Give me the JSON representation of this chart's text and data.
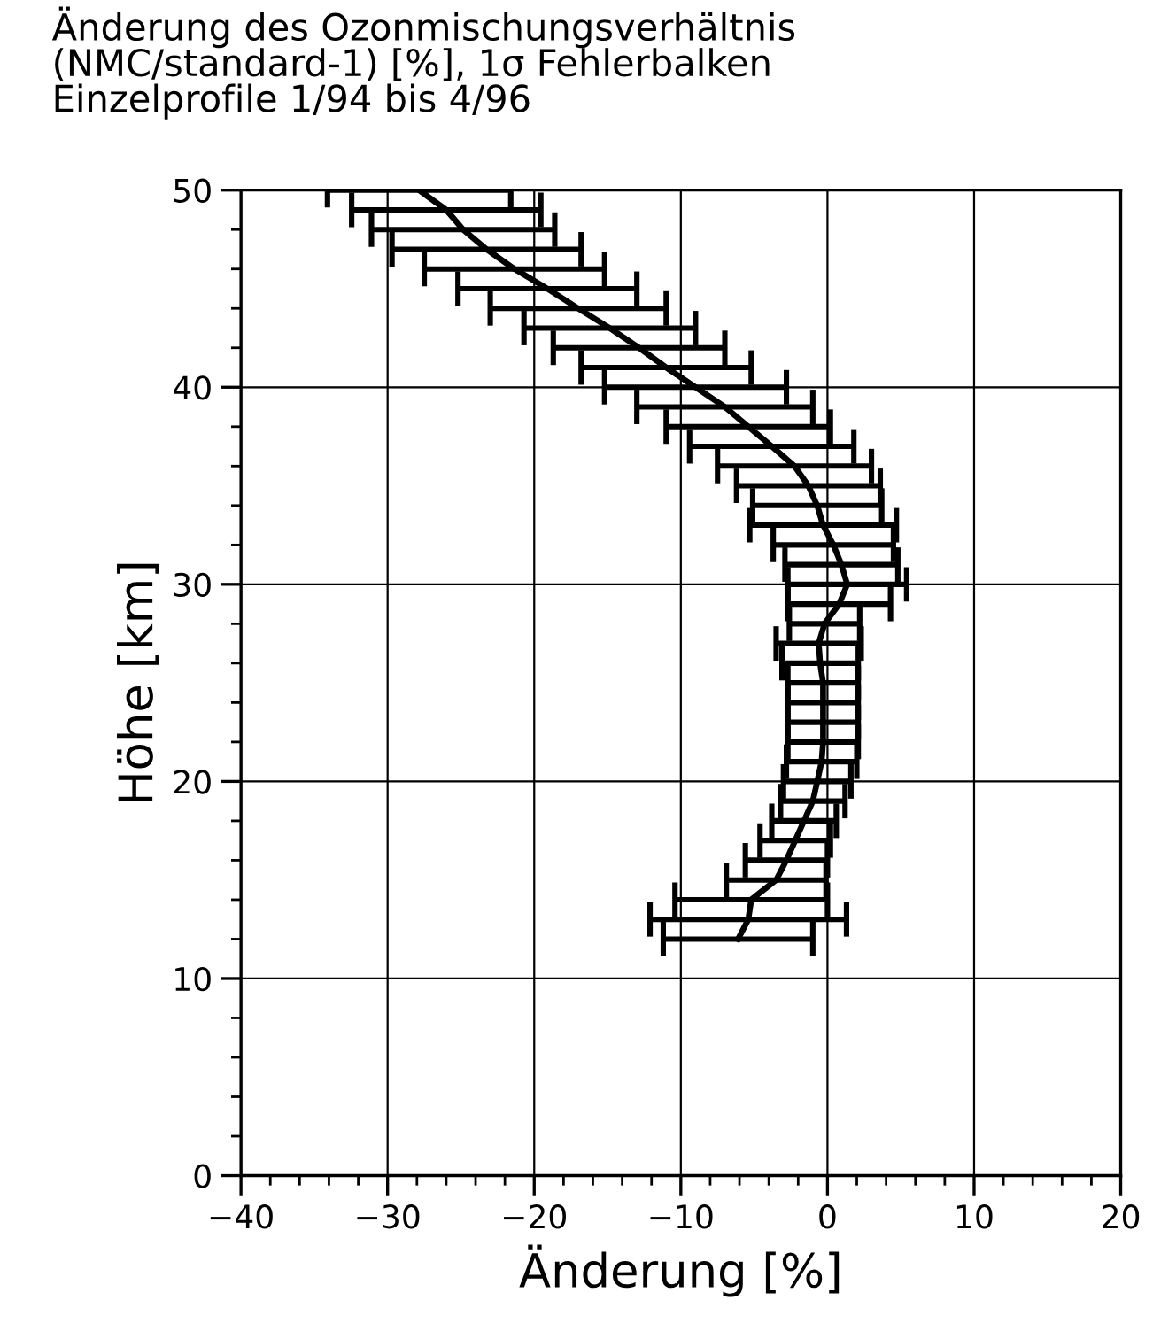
{
  "chart_data": {
    "type": "line",
    "title": "Änderung des Ozonmischungsverhältnis\n(NMC/standard-1) [%], 1σ Fehlerbalken\nEinzelprofile 1/94 bis 4/96",
    "xlabel": "Änderung [%]",
    "ylabel": "Höhe [km]",
    "series": [
      {
        "color": "#000000",
        "x": [
          -6.1,
          -5.4,
          -5.2,
          -3.5,
          -2.8,
          -2.2,
          -1.6,
          -1.0,
          -0.7,
          -0.4,
          -0.3,
          -0.3,
          -0.3,
          -0.3,
          -0.5,
          -0.6,
          -0.2,
          0.8,
          1.35,
          0.95,
          0.4,
          -0.3,
          -0.7,
          -1.3,
          -2.25,
          -3.8,
          -5.4,
          -7.0,
          -9.0,
          -11.0,
          -12.85,
          -14.85,
          -17.0,
          -19.1,
          -21.35,
          -23.25,
          -24.85,
          -26.0,
          -27.85
        ],
        "values": [
          12,
          13,
          14,
          15,
          16,
          17,
          18,
          19,
          20,
          21,
          22,
          23,
          24,
          25,
          26,
          27,
          28,
          29,
          30,
          31,
          32,
          33,
          34,
          35,
          36,
          37,
          38,
          39,
          40,
          41,
          42,
          43,
          44,
          45,
          46,
          47,
          48,
          49,
          50
        ],
        "xerrors": [
          5.1,
          6.7,
          5.2,
          3.4,
          2.8,
          2.4,
          2.2,
          2.2,
          2.3,
          2.4,
          2.4,
          2.4,
          2.4,
          2.4,
          2.6,
          2.9,
          2.4,
          3.5,
          4.05,
          3.85,
          4.1,
          5.0,
          4.4,
          4.9,
          5.25,
          5.6,
          5.6,
          6.0,
          6.2,
          5.8,
          5.85,
          5.85,
          6.0,
          6.1,
          6.15,
          6.45,
          6.25,
          6.45,
          6.25
        ]
      }
    ],
    "xlim": [
      -40,
      20
    ],
    "xticks": [
      -40,
      -30,
      -20,
      -10,
      0,
      10,
      20
    ],
    "ylim": [
      0,
      50
    ],
    "yticks": [
      0,
      10,
      20,
      30,
      40,
      50
    ],
    "grid": true,
    "marker": "none",
    "line_style": "solid",
    "legend": false
  }
}
